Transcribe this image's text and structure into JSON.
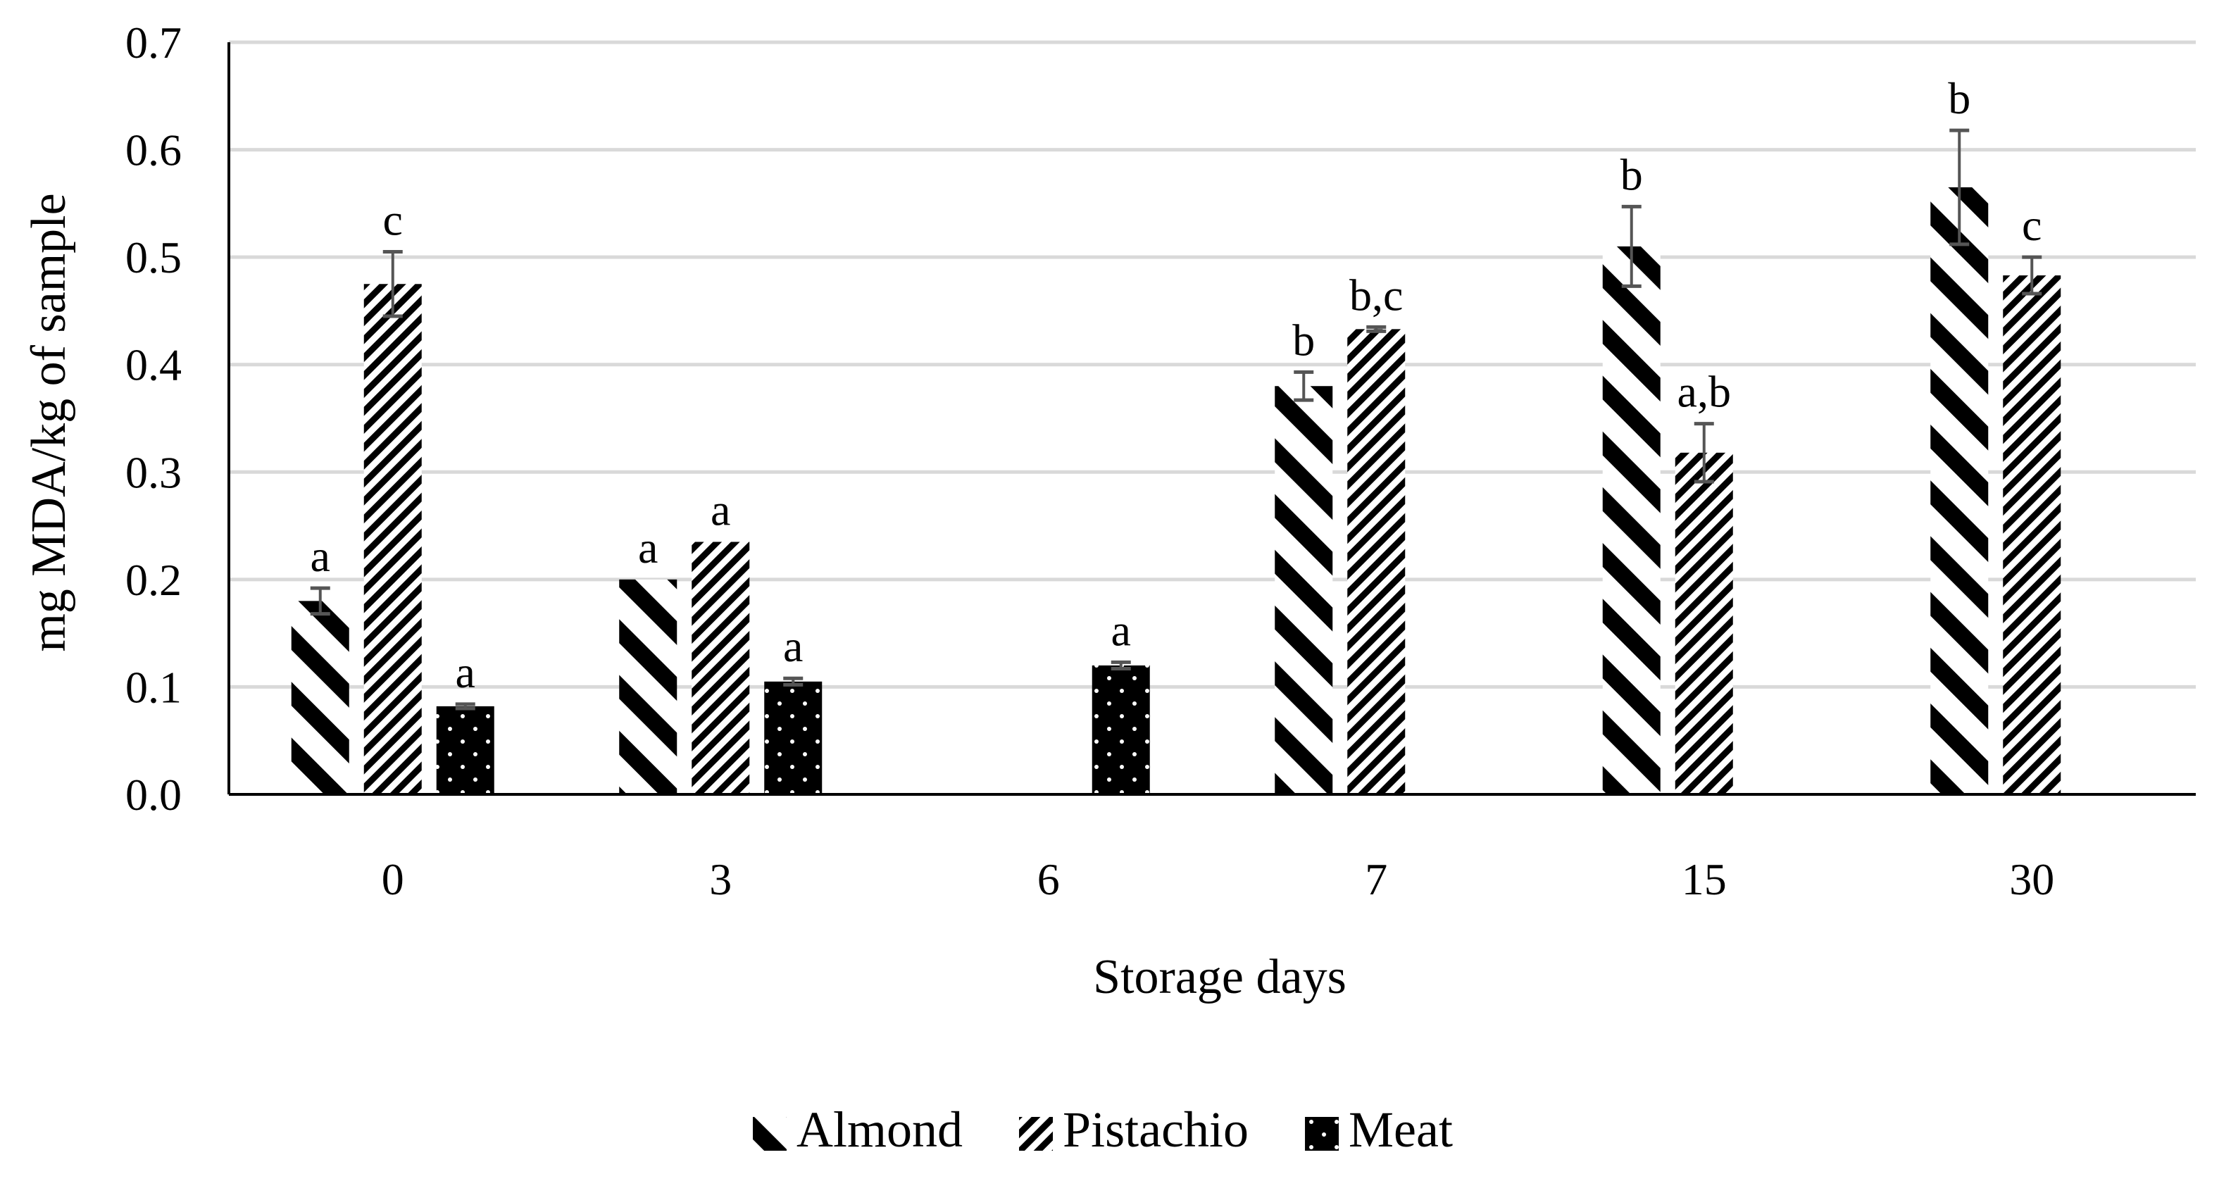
{
  "chart_data": {
    "type": "bar",
    "title": "",
    "xlabel": "Storage days",
    "ylabel": "mg MDA/kg of sample",
    "ylim": [
      0,
      0.7
    ],
    "yticks": [
      "0.0",
      "0.1",
      "0.2",
      "0.3",
      "0.4",
      "0.5",
      "0.6",
      "0.7"
    ],
    "categories": [
      "0",
      "3",
      "6",
      "7",
      "15",
      "30"
    ],
    "grid": true,
    "legend_position": "bottom",
    "series": [
      {
        "name": "Almond",
        "pattern": "almond-hatch",
        "values": [
          0.18,
          0.2,
          null,
          0.38,
          0.51,
          0.565
        ],
        "errors": [
          0.012,
          0.0,
          null,
          0.013,
          0.037,
          0.053
        ],
        "labels": [
          "a",
          "a",
          "",
          "b",
          "b",
          "b"
        ]
      },
      {
        "name": "Pistachio",
        "pattern": "pistachio-hatch",
        "values": [
          0.475,
          0.235,
          null,
          0.433,
          0.318,
          0.483
        ],
        "errors": [
          0.03,
          0.0,
          null,
          0.002,
          0.027,
          0.017
        ],
        "labels": [
          "c",
          "a",
          "",
          "b,c",
          "a,b",
          "c"
        ]
      },
      {
        "name": "Meat",
        "pattern": "meat-dots",
        "values": [
          0.082,
          0.105,
          0.12,
          null,
          null,
          null
        ],
        "errors": [
          0.002,
          0.003,
          0.003,
          null,
          null,
          null
        ],
        "labels": [
          "a",
          "a",
          "a",
          "",
          "",
          ""
        ]
      }
    ]
  },
  "colors": {
    "grid": "#d9d9d9",
    "axis": "#000000",
    "error_bar": "#555555",
    "bar_dark": "#000000",
    "bar_light": "#ffffff"
  }
}
